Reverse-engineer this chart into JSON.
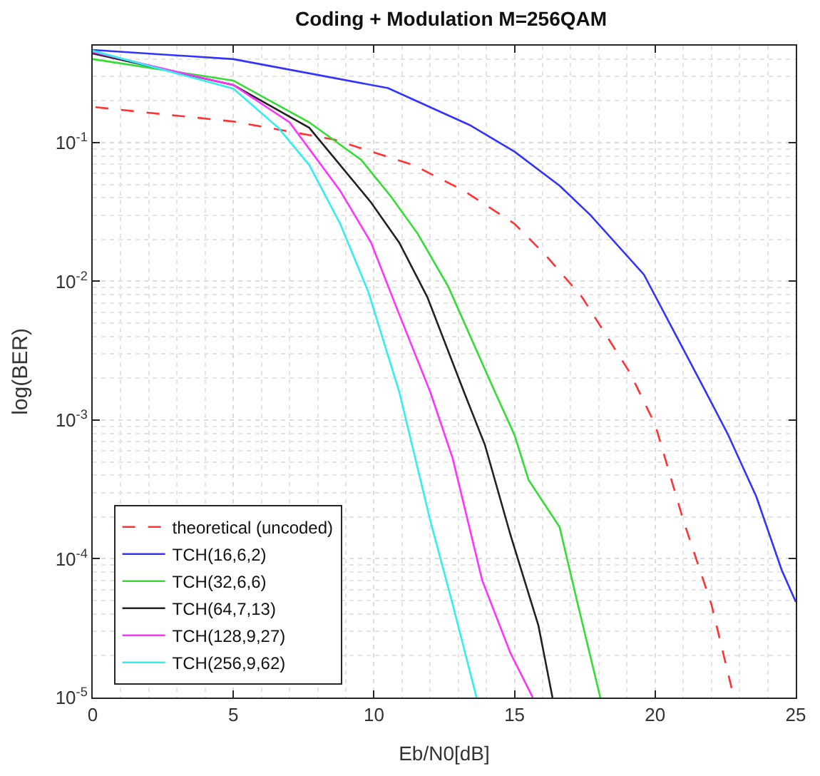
{
  "chart_data": {
    "type": "line",
    "title": "Coding + Modulation M=256QAM",
    "xlabel": "Eb/N0[dB]",
    "ylabel": "log(BER)",
    "log": "y",
    "grid": true,
    "legend": "bottom left",
    "marker": "none",
    "xlim": [
      0,
      25
    ],
    "xticks": [
      0,
      5,
      10,
      15,
      20,
      25
    ],
    "ylim": [
      1e-05,
      0.5
    ],
    "yticks": [
      {
        "value": 1e-05,
        "label": "10$^{-5}$"
      },
      {
        "value": 0.0001,
        "label": "10$^{-4}$"
      },
      {
        "value": 0.001,
        "label": "10$^{-3}$"
      },
      {
        "value": 0.01,
        "label": "10$^{-2}$"
      },
      {
        "value": 0.1,
        "label": "10$^{-1}$"
      }
    ],
    "series": [
      {
        "name": "theoretical (uncoded)",
        "color": "#ff3333",
        "line_style": "dashed",
        "x": [
          0.1,
          5,
          8.6,
          11.4,
          13.2,
          15,
          16.1,
          17.4,
          19.1,
          20,
          21,
          22,
          22.8
        ],
        "values": [
          0.18,
          0.142,
          0.105,
          0.069,
          0.045,
          0.026,
          0.0155,
          0.0077,
          0.0022,
          0.00093,
          0.00019,
          4.7e-05,
          1e-05
        ]
      },
      {
        "name": "TCH(16,6,2)",
        "color": "#3333ff",
        "line_style": "solid",
        "x": [
          0,
          5,
          10.5,
          13.4,
          15,
          16.6,
          17.7,
          19.6,
          21.8,
          22.6,
          23.6,
          24.5,
          25
        ],
        "values": [
          0.466,
          0.4,
          0.247,
          0.134,
          0.086,
          0.049,
          0.03,
          0.0112,
          0.0016,
          0.00078,
          0.00028,
          8.3e-05,
          4.9e-05
        ]
      },
      {
        "name": "TCH(32,6,6)",
        "color": "#33dd33",
        "line_style": "solid",
        "x": [
          0,
          5,
          7.7,
          9.55,
          10.6,
          11.56,
          12.65,
          14.3,
          15,
          15.5,
          16.6,
          17.25,
          18.05
        ],
        "values": [
          0.4,
          0.28,
          0.14,
          0.075,
          0.041,
          0.022,
          0.0091,
          0.0016,
          0.00078,
          0.00037,
          0.00017,
          4.7e-05,
          1e-05
        ]
      },
      {
        "name": "TCH(64,7,13)",
        "color": "#222222",
        "line_style": "solid",
        "x": [
          0,
          5,
          7.7,
          9.9,
          10.9,
          11.9,
          13.2,
          13.95,
          14.85,
          15.85,
          16.35
        ],
        "values": [
          0.44,
          0.26,
          0.128,
          0.037,
          0.019,
          0.0077,
          0.0016,
          0.00066,
          0.00015,
          3.3e-05,
          1e-05
        ]
      },
      {
        "name": "TCH(128,9,27)",
        "color": "#ff33ff",
        "line_style": "solid",
        "x": [
          0,
          5,
          7,
          8.8,
          9.9,
          10.8,
          12,
          12.8,
          13.85,
          14.85,
          15.65
        ],
        "values": [
          0.45,
          0.26,
          0.14,
          0.045,
          0.019,
          0.0065,
          0.0016,
          0.00053,
          7e-05,
          2.1e-05,
          1e-05
        ]
      },
      {
        "name": "TCH(256,9,62)",
        "color": "#33eeee",
        "line_style": "solid",
        "x": [
          0,
          5,
          6.6,
          7.7,
          8.8,
          9.8,
          10.9,
          12,
          12.8,
          13.65
        ],
        "values": [
          0.46,
          0.245,
          0.128,
          0.069,
          0.026,
          0.0084,
          0.0016,
          0.00019,
          4.7e-05,
          1e-05
        ]
      }
    ]
  }
}
